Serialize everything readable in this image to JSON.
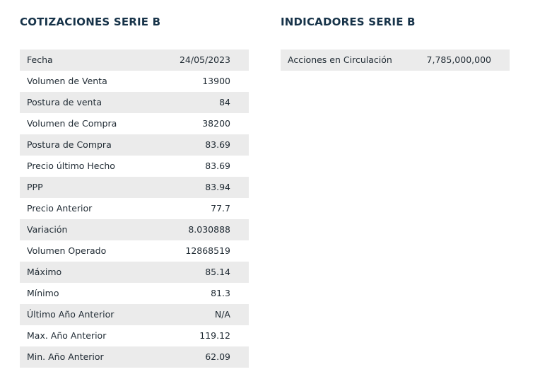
{
  "cotizaciones": {
    "title": "COTIZACIONES SERIE B",
    "rows": [
      {
        "label": "Fecha",
        "value": "24/05/2023"
      },
      {
        "label": "Volumen de Venta",
        "value": "13900"
      },
      {
        "label": "Postura de venta",
        "value": "84"
      },
      {
        "label": "Volumen de Compra",
        "value": "38200"
      },
      {
        "label": "Postura de Compra",
        "value": "83.69"
      },
      {
        "label": "Precio último Hecho",
        "value": "83.69"
      },
      {
        "label": "PPP",
        "value": "83.94"
      },
      {
        "label": "Precio Anterior",
        "value": "77.7"
      },
      {
        "label": "Variación",
        "value": "8.030888"
      },
      {
        "label": "Volumen Operado",
        "value": "12868519"
      },
      {
        "label": "Máximo",
        "value": "85.14"
      },
      {
        "label": "Mínimo",
        "value": "81.3"
      },
      {
        "label": "Último Año Anterior",
        "value": "N/A"
      },
      {
        "label": "Max. Año Anterior",
        "value": "119.12"
      },
      {
        "label": "Min. Año Anterior",
        "value": "62.09"
      }
    ]
  },
  "indicadores": {
    "title": "INDICADORES SERIE B",
    "rows": [
      {
        "label": "Acciones en Circulación",
        "value": "7,785,000,000"
      }
    ]
  }
}
